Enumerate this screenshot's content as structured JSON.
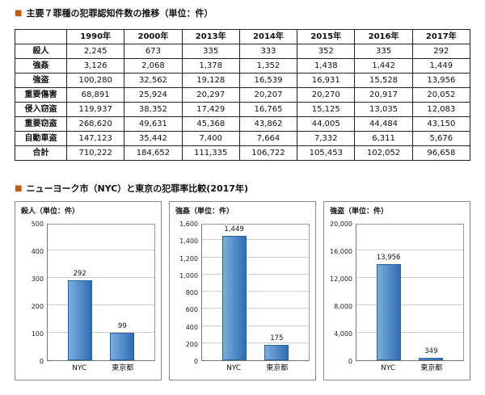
{
  "colors": {
    "bullet": "#c55a11",
    "bar_light": "#7aaede",
    "bar_dark": "#2e6db4",
    "grid": "#cccccc"
  },
  "sections": {
    "table": {
      "bullet": "■",
      "title": "主要７罪種の犯罪認知件数の推移（単位：件）"
    },
    "charts": {
      "bullet": "■",
      "title": "ニューヨーク市（NYC）と東京の犯罪率比較(2017年)"
    }
  },
  "table": {
    "columns": [
      "",
      "1990年",
      "2000年",
      "2013年",
      "2014年",
      "2015年",
      "2016年",
      "2017年"
    ],
    "rows": [
      {
        "label": "殺人",
        "values": [
          "2,245",
          "673",
          "335",
          "333",
          "352",
          "335",
          "292"
        ]
      },
      {
        "label": "強姦",
        "values": [
          "3,126",
          "2,068",
          "1,378",
          "1,352",
          "1,438",
          "1,442",
          "1,449"
        ]
      },
      {
        "label": "強盗",
        "values": [
          "100,280",
          "32,562",
          "19,128",
          "16,539",
          "16,931",
          "15,528",
          "13,956"
        ]
      },
      {
        "label": "重要傷害",
        "values": [
          "68,891",
          "25,924",
          "20,297",
          "20,207",
          "20,270",
          "20,917",
          "20,052"
        ]
      },
      {
        "label": "侵入窃盗",
        "values": [
          "119,937",
          "38,352",
          "17,429",
          "16,765",
          "15,125",
          "13,035",
          "12,083"
        ]
      },
      {
        "label": "重要窃盗",
        "values": [
          "268,620",
          "49,631",
          "45,368",
          "43,862",
          "44,005",
          "44,484",
          "43,150"
        ]
      },
      {
        "label": "自動車盗",
        "values": [
          "147,123",
          "35,442",
          "7,400",
          "7,664",
          "7,332",
          "6,311",
          "5,676"
        ]
      },
      {
        "label": "合計",
        "values": [
          "710,222",
          "184,652",
          "111,335",
          "106,722",
          "105,453",
          "102,052",
          "96,658"
        ]
      }
    ]
  },
  "chart_data": [
    {
      "type": "bar",
      "title": "殺人（単位：件）",
      "categories": [
        "NYC",
        "東京都"
      ],
      "values": [
        292,
        99
      ],
      "value_labels": [
        "292",
        "99"
      ],
      "ylim": [
        0,
        500
      ],
      "yticks": [
        0,
        100,
        200,
        300,
        400,
        500
      ],
      "ytick_labels": [
        "0",
        "100",
        "200",
        "300",
        "400",
        "500"
      ],
      "grid": true,
      "legend": false
    },
    {
      "type": "bar",
      "title": "強姦（単位：件）",
      "categories": [
        "NYC",
        "東京都"
      ],
      "values": [
        1449,
        175
      ],
      "value_labels": [
        "1,449",
        "175"
      ],
      "ylim": [
        0,
        1600
      ],
      "yticks": [
        0,
        200,
        400,
        600,
        800,
        1000,
        1200,
        1400,
        1600
      ],
      "ytick_labels": [
        "0",
        "200",
        "400",
        "600",
        "800",
        "1,000",
        "1,200",
        "1,400",
        "1,600"
      ],
      "grid": true,
      "legend": false
    },
    {
      "type": "bar",
      "title": "強盗（単位：件）",
      "categories": [
        "NYC",
        "東京都"
      ],
      "values": [
        13956,
        349
      ],
      "value_labels": [
        "13,956",
        "349"
      ],
      "ylim": [
        0,
        20000
      ],
      "yticks": [
        0,
        4000,
        8000,
        12000,
        16000,
        20000
      ],
      "ytick_labels": [
        "0",
        "4,000",
        "8,000",
        "12,000",
        "16,000",
        "20,000"
      ],
      "grid": true,
      "legend": false
    }
  ]
}
